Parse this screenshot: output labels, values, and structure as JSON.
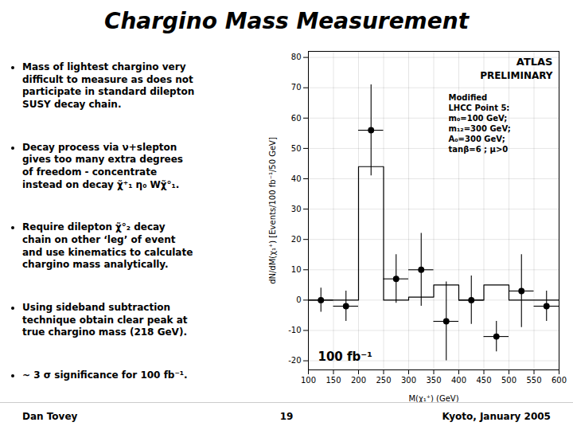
{
  "chart_data": {
    "type": "histogram",
    "title": "Chargino Mass Measurement",
    "xlabel": "M(χ₁⁺) (GeV)",
    "ylabel": "dN/dM(χ₁⁺) [Events/100 fb⁻¹/50 GeV]",
    "xlim": [
      100,
      600
    ],
    "ylim": [
      -23,
      82
    ],
    "xticks": [
      100,
      150,
      200,
      250,
      300,
      350,
      400,
      450,
      500,
      550,
      600
    ],
    "yticks": [
      -20,
      -10,
      0,
      10,
      20,
      30,
      40,
      50,
      60,
      70,
      80
    ],
    "grid": true,
    "series": [
      {
        "type": "step",
        "bins": [
          100,
          150,
          200,
          250,
          300,
          350,
          400,
          450,
          500,
          550,
          600
        ],
        "values": [
          0,
          0,
          44,
          0,
          1,
          5,
          0,
          5,
          0,
          0
        ],
        "color": "#000000",
        "line_style": "solid"
      },
      {
        "type": "scatter",
        "x": [
          125,
          175,
          225,
          275,
          325,
          375,
          425,
          475,
          525,
          575
        ],
        "values": [
          0,
          -2,
          56,
          7,
          10,
          -7,
          0,
          -12,
          3,
          -2
        ],
        "xerr": [
          25,
          25,
          25,
          25,
          25,
          25,
          25,
          25,
          25,
          25
        ],
        "yerr": [
          4,
          5,
          15,
          8,
          12,
          13,
          8,
          5,
          12,
          5
        ],
        "color": "#000000",
        "marker": "circle"
      }
    ],
    "annotations": [
      "Mass of lightest chargino very\ndifficult to measure as does not\nparticipate in standard dilepton\nSUSY decay chain.",
      "Decay process via ν+slepton\ngives too many extra degrees\nof freedom - concentrate\ninstead on decay χ̃⁺₁ η₀ Wχ̃°₁.",
      "Require dilepton χ̃°₂ decay\nchain on other ‘leg’ of event\nand use kinematics to calculate\nchargino mass analytically.",
      "Using sideband subtraction\ntechnique obtain clear peak at\ntrue chargino mass (218 GeV).",
      "~ 3 σ significance for 100 fb⁻¹.",
      "Dan Tovey",
      "19",
      "Kyoto, January 2005",
      "ATLAS",
      "PRELIMINARY",
      "Modified\nLHCC Point 5:\nm₀=100 GeV;\nm₁₂=300 GeV;\nA₀=300 GeV;\ntanβ=6 ; μ>0",
      "100 fb⁻¹"
    ]
  }
}
